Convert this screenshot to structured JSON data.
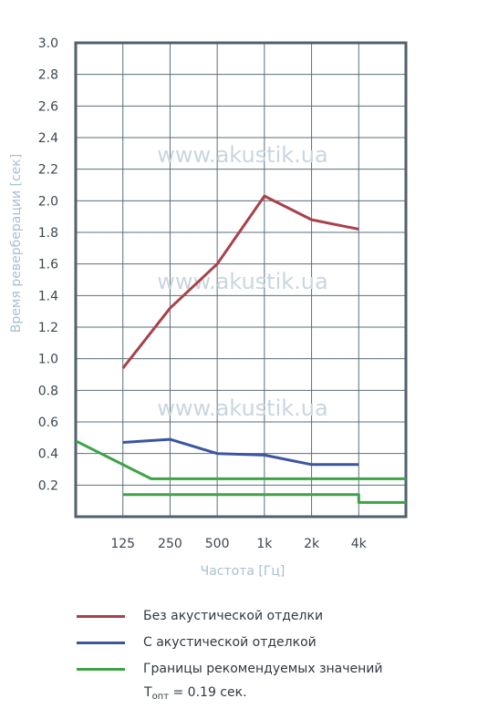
{
  "chart_data": {
    "type": "line",
    "categories": [
      "",
      "125",
      "250",
      "500",
      "1k",
      "2k",
      "4k",
      ""
    ],
    "xlabel": "Частота [Гц]",
    "ylabel": "Время реверберации [сек]",
    "ylim": [
      0,
      3.0
    ],
    "yticks": [
      0.2,
      0.4,
      0.6,
      0.8,
      1.0,
      1.2,
      1.4,
      1.6,
      1.8,
      2.0,
      2.2,
      2.4,
      2.6,
      2.8,
      3.0
    ],
    "ytick_labels": [
      "0.2",
      "0.4",
      "0.6",
      "0.8",
      "1.0",
      "1.2",
      "1.4",
      "1.6",
      "1.8",
      "2.0",
      "2.2",
      "2.4",
      "2.6",
      "2.8",
      "3.0"
    ],
    "grid": true,
    "watermark": "www.akustik.ua",
    "series": [
      {
        "name": "Без акустической отделки",
        "color": "#a8414a",
        "points": [
          [
            1,
            0.94
          ],
          [
            2,
            1.32
          ],
          [
            3,
            1.6
          ],
          [
            4,
            2.03
          ],
          [
            5,
            1.88
          ],
          [
            6,
            1.82
          ]
        ]
      },
      {
        "name": "С акустической отделкой",
        "color": "#3b55a0",
        "points": [
          [
            1,
            0.47
          ],
          [
            2,
            0.49
          ],
          [
            3,
            0.4
          ],
          [
            4,
            0.39
          ],
          [
            5,
            0.33
          ],
          [
            6,
            0.33
          ]
        ]
      },
      {
        "name": "Границы рекомендуемых значений",
        "color": "#3ea247",
        "points": [
          [
            0,
            0.48
          ],
          [
            1.6,
            0.24
          ],
          [
            7,
            0.24
          ]
        ]
      },
      {
        "name": "",
        "color": "#3ea247",
        "points": [
          [
            1,
            0.14
          ],
          [
            6,
            0.14
          ],
          [
            6,
            0.09
          ],
          [
            7,
            0.09
          ]
        ]
      }
    ]
  },
  "legend": {
    "items": [
      {
        "label": "Без акустической отделки",
        "color": "#a8414a"
      },
      {
        "label": "С акустической отделкой",
        "color": "#3b55a0"
      },
      {
        "label": "Границы рекомендуемых значений",
        "color": "#3ea247"
      }
    ],
    "topt_symbol": "T",
    "topt_sub": "опт",
    "topt_value": "= 0.19 сек."
  }
}
